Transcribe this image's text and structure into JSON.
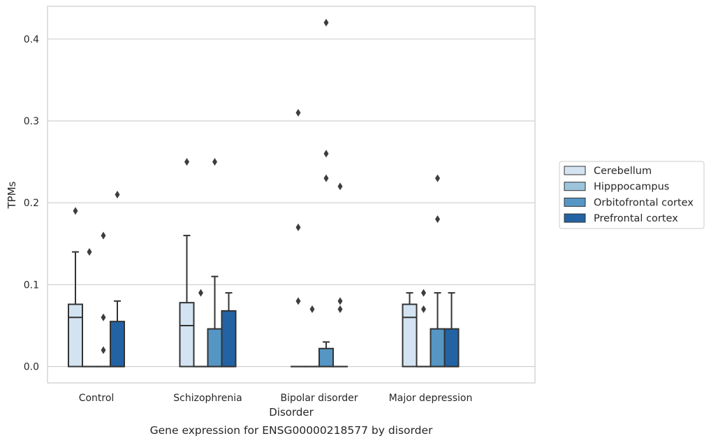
{
  "colors": {
    "Cerebellum": "#d3e3f1",
    "Hipppocampus": "#9dc4dd",
    "Orbitofrontal cortex": "#5596c4",
    "Prefrontal cortex": "#2363a3",
    "box_edge": "#333333",
    "grid": "#cccccc",
    "frame": "#cccccc"
  },
  "chart_data": {
    "type": "box",
    "caption": "Gene expression for ENSG00000218577 by disorder",
    "xlabel": "Disorder",
    "ylabel": "TPMs",
    "ylim": [
      -0.02,
      0.44
    ],
    "yticks": [
      0.0,
      0.1,
      0.2,
      0.3,
      0.4
    ],
    "ytick_labels": [
      "0.0",
      "0.1",
      "0.2",
      "0.3",
      "0.4"
    ],
    "grid": true,
    "legend_placement": "right",
    "categories": [
      "Control",
      "Schizophrenia",
      "Bipolar disorder",
      "Major depression"
    ],
    "series": [
      {
        "name": "Cerebellum",
        "boxes": [
          {
            "q1": 0.0,
            "median": 0.06,
            "q3": 0.076,
            "whislo": 0.0,
            "whishi": 0.14,
            "fliers": [
              0.19
            ]
          },
          {
            "q1": 0.0,
            "median": 0.05,
            "q3": 0.078,
            "whislo": 0.0,
            "whishi": 0.16,
            "fliers": [
              0.25
            ]
          },
          {
            "q1": 0.0,
            "median": 0.0,
            "q3": 0.0,
            "whislo": 0.0,
            "whishi": 0.0,
            "fliers": [
              0.08,
              0.17,
              0.31
            ]
          },
          {
            "q1": 0.0,
            "median": 0.06,
            "q3": 0.076,
            "whislo": 0.0,
            "whishi": 0.09,
            "fliers": []
          }
        ]
      },
      {
        "name": "Hipppocampus",
        "boxes": [
          {
            "q1": 0.0,
            "median": 0.0,
            "q3": 0.0,
            "whislo": 0.0,
            "whishi": 0.0,
            "fliers": [
              0.14
            ]
          },
          {
            "q1": 0.0,
            "median": 0.0,
            "q3": 0.0,
            "whislo": 0.0,
            "whishi": 0.0,
            "fliers": [
              0.09
            ]
          },
          {
            "q1": 0.0,
            "median": 0.0,
            "q3": 0.0,
            "whislo": 0.0,
            "whishi": 0.0,
            "fliers": [
              0.07
            ]
          },
          {
            "q1": 0.0,
            "median": 0.0,
            "q3": 0.0,
            "whislo": 0.0,
            "whishi": 0.0,
            "fliers": [
              0.07,
              0.09
            ]
          }
        ]
      },
      {
        "name": "Orbitofrontal cortex",
        "boxes": [
          {
            "q1": 0.0,
            "median": 0.0,
            "q3": 0.0,
            "whislo": 0.0,
            "whishi": 0.0,
            "fliers": [
              0.02,
              0.06,
              0.16
            ]
          },
          {
            "q1": 0.0,
            "median": 0.0,
            "q3": 0.046,
            "whislo": 0.0,
            "whishi": 0.11,
            "fliers": [
              0.25
            ]
          },
          {
            "q1": 0.0,
            "median": 0.0,
            "q3": 0.022,
            "whislo": 0.0,
            "whishi": 0.03,
            "fliers": [
              0.23,
              0.26,
              0.42
            ]
          },
          {
            "q1": 0.0,
            "median": 0.0,
            "q3": 0.046,
            "whislo": 0.0,
            "whishi": 0.09,
            "fliers": [
              0.18,
              0.23
            ]
          }
        ]
      },
      {
        "name": "Prefrontal cortex",
        "boxes": [
          {
            "q1": 0.0,
            "median": 0.0,
            "q3": 0.055,
            "whislo": 0.0,
            "whishi": 0.08,
            "fliers": [
              0.21
            ]
          },
          {
            "q1": 0.0,
            "median": 0.0,
            "q3": 0.068,
            "whislo": 0.0,
            "whishi": 0.09,
            "fliers": []
          },
          {
            "q1": 0.0,
            "median": 0.0,
            "q3": 0.0,
            "whislo": 0.0,
            "whishi": 0.0,
            "fliers": [
              0.07,
              0.08,
              0.22
            ]
          },
          {
            "q1": 0.0,
            "median": 0.0,
            "q3": 0.046,
            "whislo": 0.0,
            "whishi": 0.09,
            "fliers": []
          }
        ]
      }
    ]
  }
}
